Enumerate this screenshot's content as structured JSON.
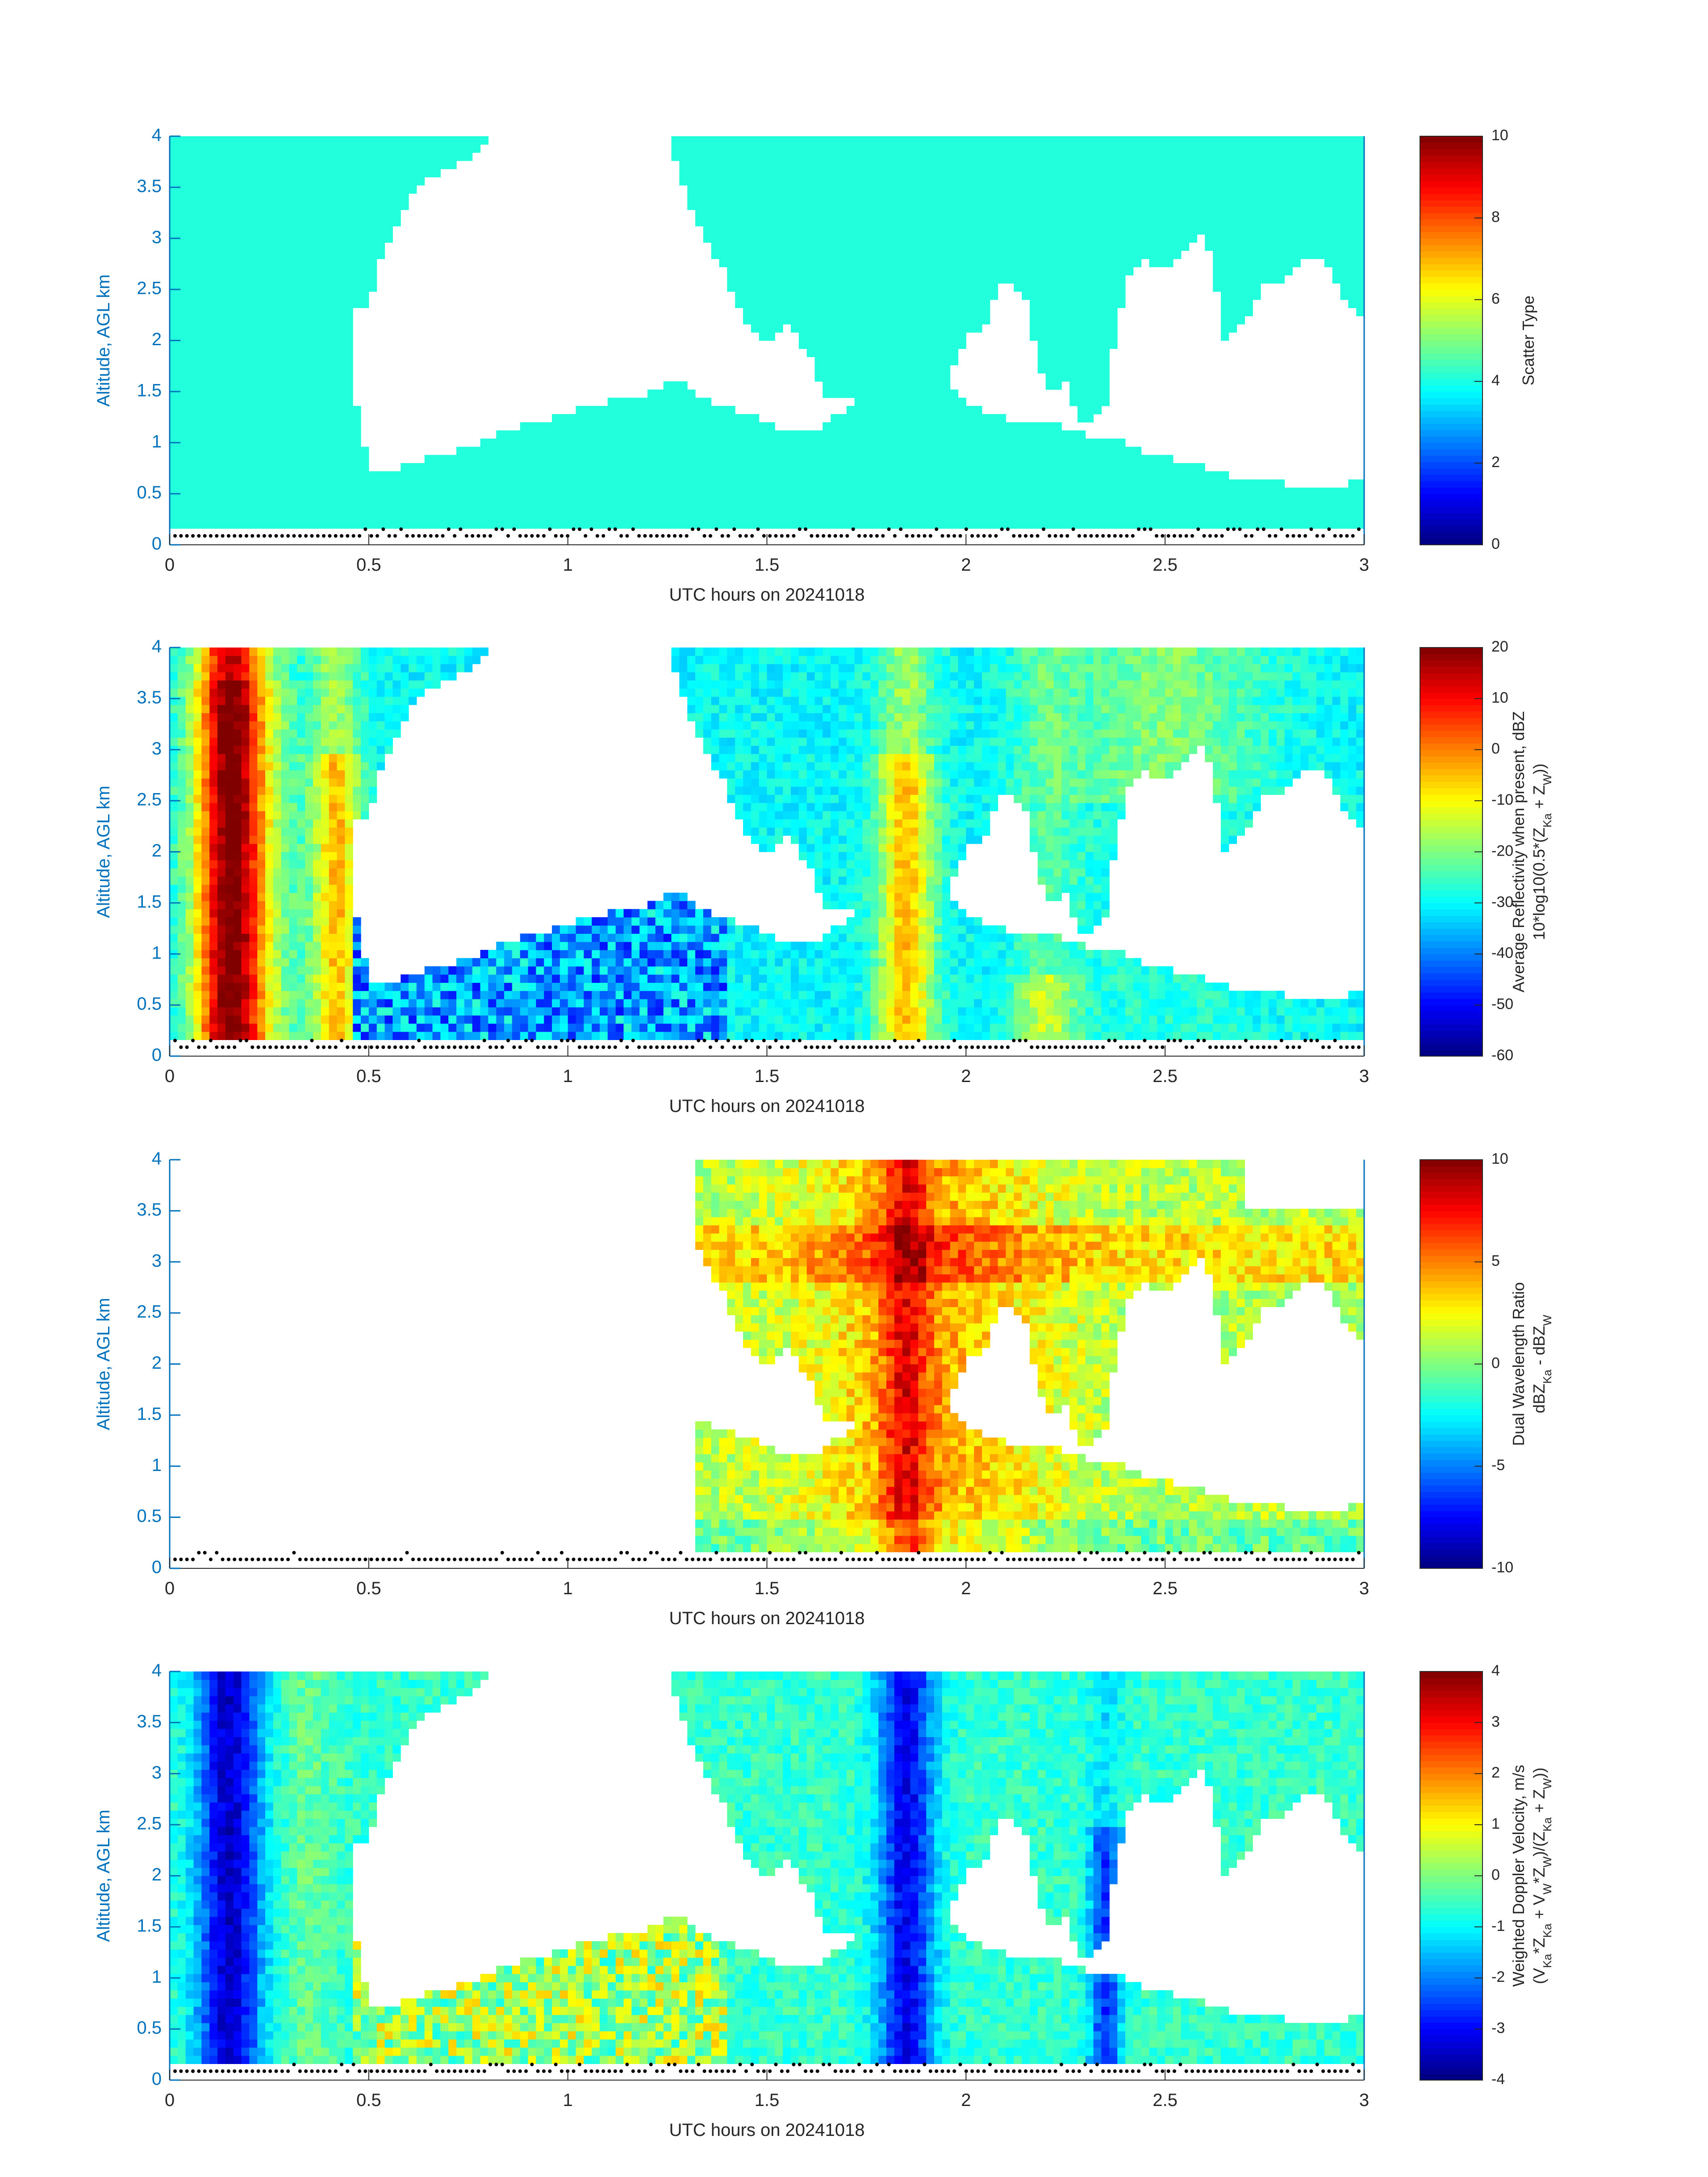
{
  "chart_data": [
    {
      "type": "heatmap",
      "panel": "scatter-type",
      "xlabel": "UTC hours on 20241018",
      "ylabel": "Altitude, AGL km",
      "xlim": [
        0,
        3
      ],
      "ylim": [
        0,
        4
      ],
      "xticks": [
        "0",
        "0.5",
        "1",
        "1.5",
        "2",
        "2.5",
        "3"
      ],
      "yticks": [
        "0",
        "0.5",
        "1",
        "1.5",
        "2",
        "2.5",
        "3",
        "3.5",
        "4"
      ],
      "colorbar": {
        "title_lines": [
          "Scatter Type"
        ],
        "range": [
          0,
          10
        ],
        "ticks": [
          "0",
          "2",
          "4",
          "6",
          "8",
          "10"
        ]
      },
      "uniform_value": 4,
      "field_style": "mask",
      "noise_seed": 3
    },
    {
      "type": "heatmap",
      "panel": "reflectivity",
      "xlabel": "UTC hours on 20241018",
      "ylabel": "Altitude, AGL km",
      "xlim": [
        0,
        3
      ],
      "ylim": [
        0,
        4
      ],
      "xticks": [
        "0",
        "0.5",
        "1",
        "1.5",
        "2",
        "2.5",
        "3"
      ],
      "yticks": [
        "0",
        "0.5",
        "1",
        "1.5",
        "2",
        "2.5",
        "3",
        "3.5",
        "4"
      ],
      "colorbar": {
        "title_lines": [
          "Average Reflectivity when present, dBZ",
          "10*log10(0.5*(Z",
          "Ka",
          " + Z",
          "W",
          "))"
        ],
        "range": [
          -60,
          20
        ],
        "ticks": [
          "-60",
          "-50",
          "-40",
          "-30",
          "-20",
          "-10",
          "0",
          "10",
          "20"
        ]
      },
      "field_style": "reflectivity",
      "noise_seed": 7
    },
    {
      "type": "heatmap",
      "panel": "dual-wavelength-ratio",
      "xlabel": "UTC hours on 20241018",
      "ylabel": "Altitude, AGL km",
      "xlim": [
        0,
        3
      ],
      "ylim": [
        0,
        4
      ],
      "xticks": [
        "0",
        "0.5",
        "1",
        "1.5",
        "2",
        "2.5",
        "3"
      ],
      "yticks": [
        "0",
        "0.5",
        "1",
        "1.5",
        "2",
        "2.5",
        "3",
        "3.5",
        "4"
      ],
      "colorbar": {
        "title_lines": [
          "Dual Wavelength Ratio",
          "dBZ",
          "Ka",
          " - dBZ",
          "W"
        ],
        "range": [
          -10,
          10
        ],
        "ticks": [
          "-10",
          "-5",
          "0",
          "5",
          "10"
        ]
      },
      "data_start_hour": 1.33,
      "field_style": "dwr",
      "noise_seed": 11
    },
    {
      "type": "heatmap",
      "panel": "doppler-velocity",
      "xlabel": "UTC hours on 20241018",
      "ylabel": "Altitude, AGL km",
      "xlim": [
        0,
        3
      ],
      "ylim": [
        0,
        4
      ],
      "xticks": [
        "0",
        "0.5",
        "1",
        "1.5",
        "2",
        "2.5",
        "3"
      ],
      "yticks": [
        "0",
        "0.5",
        "1",
        "1.5",
        "2",
        "2.5",
        "3",
        "3.5",
        "4"
      ],
      "colorbar": {
        "title_lines": [
          "Weighted Doppler Velocity, m/s",
          "(V",
          "Ka",
          "*Z",
          "Ka",
          " + V",
          "W",
          "*Z",
          "W",
          ")/(Z",
          "Ka",
          " + Z",
          "W",
          "))"
        ],
        "range": [
          -4,
          4
        ],
        "ticks": [
          "-4",
          "-3",
          "-2",
          "-1",
          "0",
          "1",
          "2",
          "3",
          "4"
        ]
      },
      "field_style": "velocity",
      "noise_seed": 17
    }
  ],
  "cloud_mask": {
    "description_free": true,
    "hours": [
      0.0,
      0.05,
      0.1,
      0.15,
      0.2,
      0.25,
      0.3,
      0.35,
      0.4,
      0.45,
      0.5,
      0.55,
      0.6,
      0.65,
      0.7,
      0.75,
      0.8,
      0.85,
      0.9,
      0.95,
      1.0,
      1.05,
      1.1,
      1.15,
      1.2,
      1.25,
      1.3,
      1.35,
      1.4,
      1.45,
      1.5,
      1.55,
      1.6,
      1.65,
      1.7,
      1.75,
      1.8,
      1.85,
      1.9,
      1.95,
      2.0,
      2.05,
      2.1,
      2.15,
      2.2,
      2.25,
      2.3,
      2.35,
      2.4,
      2.45,
      2.5,
      2.55,
      2.6,
      2.65,
      2.7,
      2.75,
      2.8,
      2.85,
      2.9,
      2.95,
      3.0
    ],
    "lower_top_km": [
      4.0,
      4.0,
      4.0,
      4.0,
      4.0,
      4.0,
      4.0,
      4.0,
      4.0,
      1.8,
      0.7,
      0.7,
      0.8,
      0.85,
      0.9,
      0.95,
      1.05,
      1.1,
      1.2,
      1.2,
      1.3,
      1.35,
      1.4,
      1.4,
      1.45,
      1.6,
      1.55,
      1.4,
      1.35,
      1.3,
      1.2,
      1.1,
      1.1,
      1.2,
      1.3,
      1.4,
      1.4,
      1.4,
      1.5,
      1.6,
      1.4,
      1.3,
      1.25,
      1.2,
      1.2,
      1.15,
      1.1,
      1.0,
      1.0,
      0.9,
      0.85,
      0.8,
      0.75,
      0.7,
      0.65,
      0.6,
      0.6,
      0.55,
      0.55,
      0.6,
      0.6
    ],
    "upper_base_km": [
      4.0,
      4.0,
      4.0,
      4.0,
      4.0,
      4.0,
      4.0,
      4.0,
      4.0,
      2.2,
      2.4,
      3.0,
      3.4,
      3.6,
      3.7,
      3.8,
      4.0,
      4.0,
      4.0,
      4.0,
      4.0,
      4.0,
      4.0,
      4.0,
      4.0,
      4.0,
      3.4,
      3.0,
      2.6,
      2.2,
      2.0,
      2.2,
      1.9,
      1.4,
      1.5,
      1.3,
      1.2,
      1.3,
      1.4,
      1.6,
      2.0,
      2.2,
      2.6,
      2.4,
      1.5,
      1.6,
      1.1,
      1.4,
      2.6,
      2.8,
      2.7,
      2.9,
      3.1,
      2.0,
      2.2,
      2.6,
      2.6,
      2.8,
      2.8,
      2.4,
      2.2
    ],
    "surface_clutter_km": 0.2
  },
  "colors": {
    "axis_blue": "#0072BD",
    "text_dark": "#262626",
    "mask_color": "#22FFDD"
  }
}
